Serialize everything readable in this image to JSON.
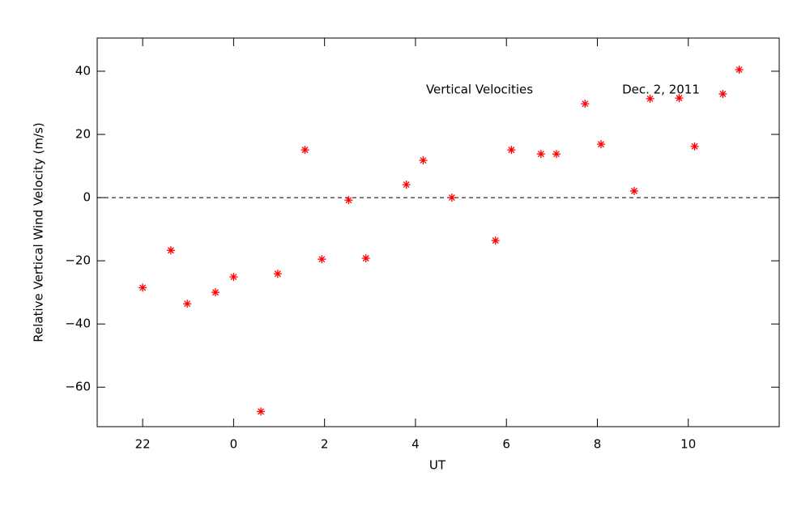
{
  "chart_data": {
    "type": "scatter",
    "x_label": "UT",
    "y_label": "Relative Vertical Wind Velocity (m/s)",
    "annotations": [
      "Vertical Velocities",
      "Dec. 2, 2011"
    ],
    "color": "#ff0000",
    "xlim": [
      -3,
      12
    ],
    "ylim": [
      -72.5,
      50.5
    ],
    "xticks": [
      {
        "value": -2,
        "label": "22"
      },
      0,
      2,
      4,
      6,
      8,
      10
    ],
    "yticks": [
      {
        "value": -60,
        "label": "−60"
      },
      {
        "value": -40,
        "label": "−40"
      },
      {
        "value": -20,
        "label": "−20"
      },
      0,
      20,
      40
    ],
    "hline": 0,
    "x": [
      -2.0,
      -1.38,
      -1.02,
      -0.4,
      0.0,
      0.6,
      0.97,
      1.57,
      1.94,
      2.53,
      2.91,
      3.8,
      4.17,
      4.8,
      5.76,
      6.11,
      6.76,
      7.1,
      7.73,
      8.08,
      8.81,
      9.16,
      9.8,
      10.14,
      10.76,
      11.12
    ],
    "values": [
      -28.5,
      -16.7,
      -33.6,
      -30.0,
      -25.1,
      -67.7,
      -24.1,
      15.1,
      -19.5,
      -0.8,
      -19.2,
      4.1,
      11.8,
      0.0,
      -13.6,
      15.1,
      13.8,
      13.8,
      29.7,
      16.9,
      2.1,
      31.3,
      31.5,
      16.2,
      32.8,
      40.5
    ]
  }
}
